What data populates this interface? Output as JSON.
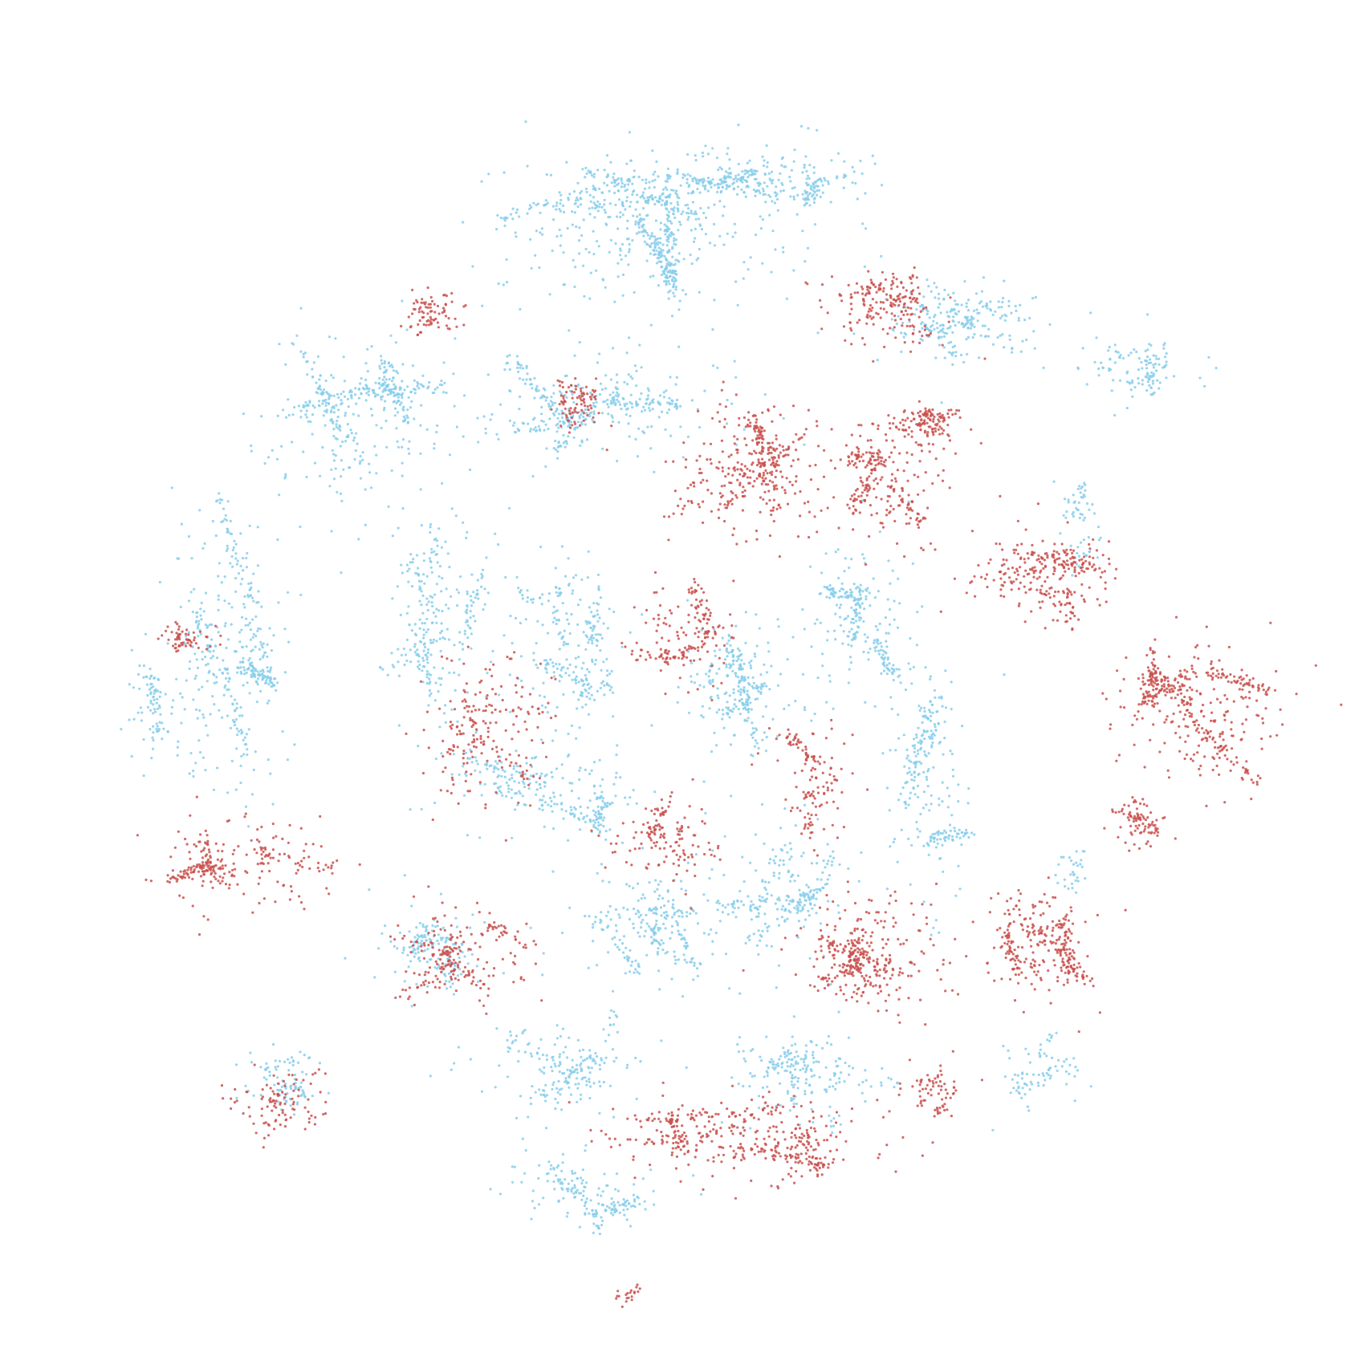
{
  "chart_data": {
    "type": "scatter",
    "title": "",
    "xlabel": "",
    "ylabel": "",
    "grid": false,
    "axes_visible": false,
    "legend": "none",
    "xlim": [
      -1.0,
      1.0
    ],
    "ylim": [
      -1.0,
      1.0
    ],
    "series": [
      {
        "color": "#87CEEB",
        "clusters": [
          {
            "cx": -0.05,
            "cy": 0.72,
            "rx": 0.26,
            "ry": 0.14,
            "n": 700
          },
          {
            "cx": 0.14,
            "cy": 0.8,
            "rx": 0.16,
            "ry": 0.06,
            "n": 260
          },
          {
            "cx": 0.42,
            "cy": 0.57,
            "rx": 0.16,
            "ry": 0.07,
            "n": 240
          },
          {
            "cx": 0.7,
            "cy": 0.49,
            "rx": 0.1,
            "ry": 0.06,
            "n": 120
          },
          {
            "cx": -0.5,
            "cy": 0.41,
            "rx": 0.17,
            "ry": 0.16,
            "n": 420
          },
          {
            "cx": -0.13,
            "cy": 0.44,
            "rx": 0.22,
            "ry": 0.09,
            "n": 380
          },
          {
            "cx": -0.72,
            "cy": 0.05,
            "rx": 0.11,
            "ry": 0.27,
            "n": 420
          },
          {
            "cx": -0.84,
            "cy": -0.05,
            "rx": 0.04,
            "ry": 0.1,
            "n": 80
          },
          {
            "cx": -0.38,
            "cy": 0.12,
            "rx": 0.1,
            "ry": 0.24,
            "n": 280
          },
          {
            "cx": -0.18,
            "cy": 0.06,
            "rx": 0.1,
            "ry": 0.16,
            "n": 260
          },
          {
            "cx": 0.08,
            "cy": 0.0,
            "rx": 0.1,
            "ry": 0.12,
            "n": 260
          },
          {
            "cx": 0.27,
            "cy": 0.1,
            "rx": 0.11,
            "ry": 0.16,
            "n": 260
          },
          {
            "cx": 0.38,
            "cy": -0.16,
            "rx": 0.08,
            "ry": 0.22,
            "n": 260
          },
          {
            "cx": -0.22,
            "cy": -0.17,
            "rx": 0.18,
            "ry": 0.08,
            "n": 260
          },
          {
            "cx": -0.05,
            "cy": -0.38,
            "rx": 0.14,
            "ry": 0.11,
            "n": 260
          },
          {
            "cx": 0.15,
            "cy": -0.33,
            "rx": 0.12,
            "ry": 0.12,
            "n": 240
          },
          {
            "cx": -0.4,
            "cy": -0.42,
            "rx": 0.1,
            "ry": 0.08,
            "n": 160
          },
          {
            "cx": -0.2,
            "cy": -0.62,
            "rx": 0.16,
            "ry": 0.09,
            "n": 200
          },
          {
            "cx": -0.16,
            "cy": -0.8,
            "rx": 0.14,
            "ry": 0.06,
            "n": 180
          },
          {
            "cx": 0.18,
            "cy": -0.63,
            "rx": 0.14,
            "ry": 0.08,
            "n": 200
          },
          {
            "cx": 0.55,
            "cy": -0.62,
            "rx": 0.08,
            "ry": 0.07,
            "n": 80
          },
          {
            "cx": -0.63,
            "cy": -0.63,
            "rx": 0.08,
            "ry": 0.06,
            "n": 90
          },
          {
            "cx": 0.62,
            "cy": 0.25,
            "rx": 0.04,
            "ry": 0.1,
            "n": 60
          },
          {
            "cx": 0.6,
            "cy": -0.3,
            "rx": 0.03,
            "ry": 0.04,
            "n": 30
          }
        ]
      },
      {
        "color": "#C9514E",
        "clusters": [
          {
            "cx": 0.1,
            "cy": 0.35,
            "rx": 0.14,
            "ry": 0.12,
            "n": 360
          },
          {
            "cx": 0.32,
            "cy": 0.33,
            "rx": 0.1,
            "ry": 0.12,
            "n": 260
          },
          {
            "cx": 0.55,
            "cy": 0.17,
            "rx": 0.14,
            "ry": 0.08,
            "n": 280
          },
          {
            "cx": 0.8,
            "cy": -0.05,
            "rx": 0.16,
            "ry": 0.12,
            "n": 440
          },
          {
            "cx": 0.7,
            "cy": -0.22,
            "rx": 0.05,
            "ry": 0.05,
            "n": 90
          },
          {
            "cx": 0.3,
            "cy": -0.43,
            "rx": 0.12,
            "ry": 0.1,
            "n": 340
          },
          {
            "cx": 0.55,
            "cy": -0.41,
            "rx": 0.1,
            "ry": 0.1,
            "n": 300
          },
          {
            "cx": 0.1,
            "cy": -0.72,
            "rx": 0.26,
            "ry": 0.08,
            "n": 420
          },
          {
            "cx": -0.34,
            "cy": -0.43,
            "rx": 0.13,
            "ry": 0.09,
            "n": 220
          },
          {
            "cx": -0.7,
            "cy": -0.29,
            "rx": 0.16,
            "ry": 0.09,
            "n": 260
          },
          {
            "cx": -0.3,
            "cy": -0.07,
            "rx": 0.13,
            "ry": 0.13,
            "n": 200
          },
          {
            "cx": 0.0,
            "cy": 0.08,
            "rx": 0.11,
            "ry": 0.1,
            "n": 180
          },
          {
            "cx": 0.3,
            "cy": 0.59,
            "rx": 0.1,
            "ry": 0.08,
            "n": 200
          },
          {
            "cx": 0.38,
            "cy": 0.4,
            "rx": 0.05,
            "ry": 0.05,
            "n": 120
          },
          {
            "cx": -0.17,
            "cy": 0.44,
            "rx": 0.05,
            "ry": 0.05,
            "n": 90
          },
          {
            "cx": -0.4,
            "cy": 0.58,
            "rx": 0.05,
            "ry": 0.04,
            "n": 80
          },
          {
            "cx": -0.78,
            "cy": 0.07,
            "rx": 0.05,
            "ry": 0.03,
            "n": 60
          },
          {
            "cx": -0.65,
            "cy": -0.66,
            "rx": 0.08,
            "ry": 0.06,
            "n": 100
          },
          {
            "cx": -0.09,
            "cy": -0.97,
            "rx": 0.03,
            "ry": 0.02,
            "n": 20
          },
          {
            "cx": -0.05,
            "cy": -0.25,
            "rx": 0.1,
            "ry": 0.08,
            "n": 140
          },
          {
            "cx": 0.2,
            "cy": -0.15,
            "rx": 0.08,
            "ry": 0.1,
            "n": 140
          },
          {
            "cx": 0.38,
            "cy": -0.65,
            "rx": 0.06,
            "ry": 0.05,
            "n": 70
          }
        ]
      }
    ]
  }
}
